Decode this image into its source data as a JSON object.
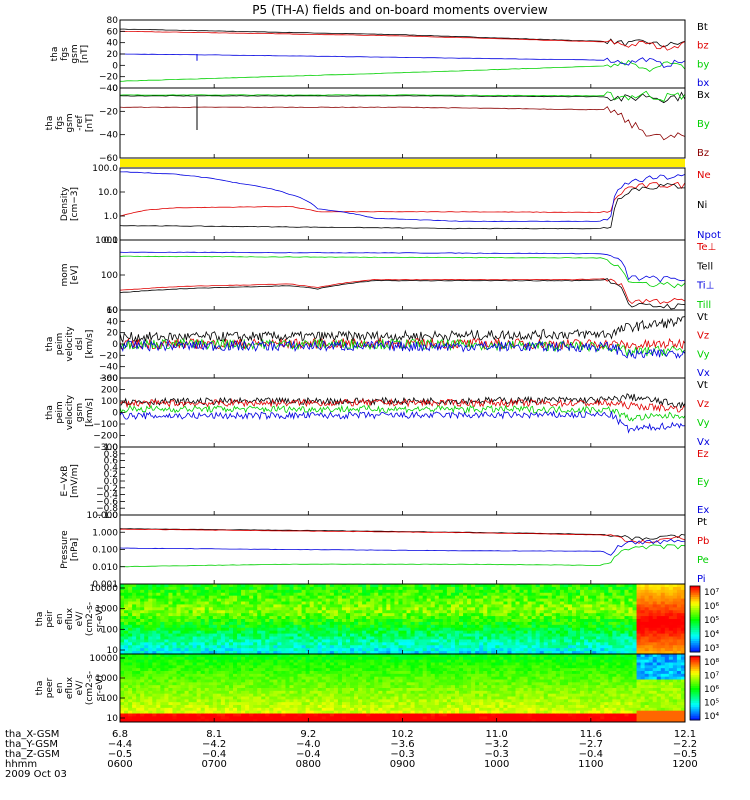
{
  "title": "P5 (TH-A) fields and on-board moments overview",
  "colors": {
    "black": "#000000",
    "red": "#e00000",
    "green": "#00d000",
    "blue": "#0000e0",
    "darkred": "#8b0000",
    "yellow": "#ffee00"
  },
  "chart_data": [
    {
      "type": "line",
      "id": "p1",
      "ylabel": [
        "tha",
        "fgs",
        "gsm",
        "[nT]"
      ],
      "ylim": [
        -40,
        80
      ],
      "yticks": [
        "80",
        "60",
        "40",
        "20",
        "0",
        "−20",
        "−40"
      ],
      "series": [
        {
          "name": "Bt",
          "color": "#000000",
          "x": [
            0,
            0.2,
            0.5,
            0.8,
            0.87,
            0.9,
            0.93,
            0.96,
            1
          ],
          "y": [
            64,
            60,
            54,
            44,
            42,
            38,
            42,
            35,
            40
          ]
        },
        {
          "name": "bz",
          "color": "#e00000",
          "x": [
            0,
            0.2,
            0.5,
            0.8,
            0.87,
            0.9,
            0.93,
            0.96,
            1
          ],
          "y": [
            60,
            57,
            52,
            43,
            41,
            35,
            40,
            30,
            38
          ]
        },
        {
          "name": "by",
          "color": "#00d000",
          "x": [
            0,
            0.2,
            0.5,
            0.8,
            0.87,
            0.9,
            0.93,
            0.96,
            1
          ],
          "y": [
            -28,
            -22,
            -13,
            -3,
            -1,
            5,
            -10,
            5,
            -4
          ]
        },
        {
          "name": "bx",
          "color": "#0000e0",
          "x": [
            0,
            0.2,
            0.5,
            0.8,
            0.87,
            0.9,
            0.93,
            0.96,
            1
          ],
          "y": [
            20,
            18,
            14,
            10,
            9,
            4,
            12,
            0,
            8
          ]
        }
      ]
    },
    {
      "type": "line",
      "id": "p2",
      "ylabel": [
        "tha",
        "fgs",
        "gsm",
        "-ref",
        "[nT]"
      ],
      "ylim": [
        -70,
        10
      ],
      "yticks": [
        "0",
        "−20",
        "−40",
        "−60"
      ],
      "series": [
        {
          "name": "Bx",
          "color": "#000000",
          "x": [
            0,
            0.5,
            0.87,
            0.9,
            0.93,
            0.96,
            1
          ],
          "y": [
            1,
            1,
            0,
            -3,
            2,
            -2,
            1
          ]
        },
        {
          "name": "By",
          "color": "#00d000",
          "x": [
            0,
            0.5,
            0.87,
            0.9,
            0.93,
            0.96,
            1
          ],
          "y": [
            2,
            2,
            1,
            0,
            3,
            -1,
            2
          ]
        },
        {
          "name": "Bz",
          "color": "#8b0000",
          "x": [
            0,
            0.5,
            0.87,
            0.9,
            0.93,
            0.96,
            1
          ],
          "y": [
            -12,
            -12,
            -15,
            -30,
            -40,
            -48,
            -45
          ]
        }
      ]
    },
    {
      "type": "line",
      "id": "p4",
      "log": true,
      "ylabel": [
        "Density",
        "[cm−3]"
      ],
      "ylim": [
        0.1,
        100
      ],
      "yticks": [
        "100.0",
        "10.0",
        "1.0",
        "0.1"
      ],
      "series": [
        {
          "name": "Ne",
          "color": "#e00000",
          "x": [
            0,
            0.05,
            0.1,
            0.3,
            0.35,
            0.45,
            0.6,
            0.85,
            0.87,
            0.9,
            0.95,
            1
          ],
          "y": [
            1,
            1.8,
            2.2,
            2.5,
            1.5,
            1.5,
            1.5,
            1.4,
            1.8,
            15,
            20,
            20
          ]
        },
        {
          "name": "Ni",
          "color": "#000000",
          "x": [
            0,
            0.3,
            0.6,
            0.85,
            0.87,
            0.9,
            0.95,
            1
          ],
          "y": [
            0.4,
            0.35,
            0.3,
            0.3,
            0.4,
            12,
            18,
            18
          ]
        },
        {
          "name": "Npot",
          "color": "#0000e0",
          "x": [
            0,
            0.1,
            0.2,
            0.3,
            0.35,
            0.45,
            0.6,
            0.85,
            0.87,
            0.9,
            0.95,
            1
          ],
          "y": [
            70,
            55,
            25,
            8,
            2,
            0.8,
            0.6,
            0.6,
            1,
            25,
            40,
            45
          ]
        }
      ]
    },
    {
      "type": "line",
      "id": "p5",
      "log": true,
      "ylabel": [
        "mom",
        "[eV]"
      ],
      "ylim": [
        10,
        10000
      ],
      "yticks": [
        "1000",
        "100",
        "10"
      ],
      "series": [
        {
          "name": "Te⊥",
          "color": "#e00000",
          "x": [
            0,
            0.1,
            0.3,
            0.35,
            0.45,
            0.8,
            0.87,
            0.9,
            1
          ],
          "y": [
            70,
            100,
            130,
            90,
            200,
            200,
            220,
            25,
            25
          ]
        },
        {
          "name": "Tell",
          "color": "#000000",
          "x": [
            0,
            0.1,
            0.3,
            0.35,
            0.45,
            0.8,
            0.87,
            0.9,
            1
          ],
          "y": [
            55,
            80,
            110,
            80,
            180,
            180,
            200,
            15,
            15
          ]
        },
        {
          "name": "Ti⊥",
          "color": "#0000e0",
          "x": [
            0,
            0.5,
            0.85,
            0.87,
            0.9,
            1
          ],
          "y": [
            3000,
            2800,
            2600,
            2000,
            250,
            200
          ]
        },
        {
          "name": "Till",
          "color": "#00d000",
          "x": [
            0,
            0.5,
            0.85,
            0.87,
            0.9,
            1
          ],
          "y": [
            2000,
            1800,
            1700,
            1300,
            150,
            120
          ]
        }
      ]
    },
    {
      "type": "line",
      "id": "p6",
      "noisy": true,
      "ylabel": [
        "tha",
        "peim",
        "velocity",
        "dsl",
        "[km/s]"
      ],
      "ylim": [
        -60,
        60
      ],
      "yticks": [
        "60",
        "40",
        "20",
        "0",
        "−20",
        "−40",
        "−60"
      ],
      "series": [
        {
          "name": "Vt",
          "color": "#000000",
          "x": [
            0,
            0.5,
            0.87,
            0.9,
            1
          ],
          "y": [
            12,
            14,
            18,
            30,
            40
          ]
        },
        {
          "name": "Vz",
          "color": "#e00000",
          "x": [
            0,
            0.5,
            0.87,
            0.9,
            1
          ],
          "y": [
            0,
            1,
            0,
            -3,
            1
          ]
        },
        {
          "name": "Vy",
          "color": "#00d000",
          "x": [
            0,
            0.5,
            0.87,
            0.9,
            1
          ],
          "y": [
            0,
            0,
            -5,
            -15,
            -10
          ]
        },
        {
          "name": "Vx",
          "color": "#0000e0",
          "x": [
            0,
            0.5,
            0.87,
            0.9,
            1
          ],
          "y": [
            -3,
            -4,
            -5,
            -20,
            -15
          ]
        }
      ]
    },
    {
      "type": "line",
      "id": "p7",
      "noisy": true,
      "ylabel": [
        "tha",
        "peim",
        "velocity",
        "gsm",
        "[km/s]"
      ],
      "ylim": [
        -300,
        300
      ],
      "yticks": [
        "300",
        "200",
        "100",
        "0",
        "−100",
        "−200",
        "−300"
      ],
      "series": [
        {
          "name": "Vt",
          "color": "#000000",
          "x": [
            0,
            0.5,
            0.87,
            0.9,
            1
          ],
          "y": [
            95,
            100,
            110,
            140,
            60
          ]
        },
        {
          "name": "Vz",
          "color": "#e00000",
          "x": [
            0,
            0.5,
            0.87,
            0.9,
            1
          ],
          "y": [
            80,
            85,
            80,
            60,
            30
          ]
        },
        {
          "name": "Vy",
          "color": "#00d000",
          "x": [
            0,
            0.5,
            0.87,
            0.9,
            1
          ],
          "y": [
            30,
            30,
            25,
            -50,
            -20
          ]
        },
        {
          "name": "Vx",
          "color": "#0000e0",
          "x": [
            0,
            0.5,
            0.87,
            0.9,
            1
          ],
          "y": [
            -30,
            -25,
            -20,
            -150,
            -100
          ]
        }
      ]
    },
    {
      "type": "line",
      "id": "p8",
      "ylabel": [
        "E−VxB",
        "[mV/m]"
      ],
      "ylim": [
        -1.0,
        1.0
      ],
      "yticks": [
        "1.0",
        "0.8",
        "0.6",
        "0.4",
        "0.2",
        "0.0",
        "−0.2",
        "−0.4",
        "−0.6",
        "−0.8",
        "−1.0"
      ],
      "series": [
        {
          "name": "Ez",
          "color": "#e00000",
          "x": [],
          "y": []
        },
        {
          "name": "Ey",
          "color": "#00d000",
          "x": [],
          "y": []
        },
        {
          "name": "Ex",
          "color": "#0000e0",
          "x": [],
          "y": []
        }
      ]
    },
    {
      "type": "line",
      "id": "p9",
      "log": true,
      "ylabel": [
        "Pressure",
        "[nPa]"
      ],
      "ylim": [
        0.001,
        10
      ],
      "yticks": [
        "10.000",
        "1.000",
        "0.100",
        "0.010",
        "0.001"
      ],
      "series": [
        {
          "name": "Pt",
          "color": "#000000",
          "x": [
            0,
            0.3,
            0.6,
            0.85,
            0.87,
            0.9,
            0.95,
            1
          ],
          "y": [
            1.6,
            1.3,
            1.0,
            0.75,
            0.7,
            0.5,
            0.5,
            0.6
          ]
        },
        {
          "name": "Pb",
          "color": "#e00000",
          "x": [
            0,
            0.3,
            0.6,
            0.85,
            0.87,
            0.9,
            0.95,
            1
          ],
          "y": [
            1.5,
            1.2,
            0.95,
            0.7,
            0.6,
            0.3,
            0.3,
            0.5
          ]
        },
        {
          "name": "Pe",
          "color": "#00d000",
          "x": [
            0,
            0.3,
            0.6,
            0.85,
            0.87,
            0.9,
            0.95,
            1
          ],
          "y": [
            0.01,
            0.014,
            0.014,
            0.012,
            0.02,
            0.12,
            0.15,
            0.15
          ]
        },
        {
          "name": "Pi",
          "color": "#0000e0",
          "x": [
            0,
            0.3,
            0.6,
            0.85,
            0.87,
            0.9,
            0.95,
            1
          ],
          "y": [
            0.12,
            0.1,
            0.085,
            0.08,
            0.06,
            0.25,
            0.3,
            0.3
          ]
        }
      ]
    },
    {
      "type": "heatmap",
      "id": "p10",
      "ylabel": [
        "tha",
        "peir",
        "en",
        "eflux",
        "eV/",
        "(cm2-s-",
        "sr-eV)"
      ],
      "ylim": [
        10,
        10000
      ],
      "yticks": [
        "10000",
        "1000",
        "100",
        "10"
      ],
      "colorbar_ticks": [
        "10⁷",
        "10⁶",
        "10⁵",
        "10⁴",
        "10³"
      ]
    },
    {
      "type": "heatmap",
      "id": "p11",
      "ylabel": [
        "tha",
        "peer",
        "en",
        "eflux",
        "eV/",
        "(cm2-s-",
        "sr-eV)"
      ],
      "ylim": [
        10,
        10000
      ],
      "yticks": [
        "10000",
        "1000",
        "100",
        "10"
      ],
      "colorbar_ticks": [
        "10⁸",
        "10⁷",
        "10⁶",
        "10⁵",
        "10⁴"
      ]
    }
  ],
  "bottom_axis": {
    "row_labels": [
      "tha_X-GSM",
      "tha_Y-GSM",
      "tha_Z-GSM",
      "hhmm"
    ],
    "date": "2009 Oct 03",
    "columns": [
      [
        "6.8",
        "−4.4",
        "−0.5",
        "0600"
      ],
      [
        "8.1",
        "−4.2",
        "−0.4",
        "0700"
      ],
      [
        "9.2",
        "−4.0",
        "−0.4",
        "0800"
      ],
      [
        "10.2",
        "−3.6",
        "−0.3",
        "0900"
      ],
      [
        "11.0",
        "−3.2",
        "−0.3",
        "1000"
      ],
      [
        "11.6",
        "−2.7",
        "−0.4",
        "1100"
      ],
      [
        "12.1",
        "−2.2",
        "−0.5",
        "1200"
      ]
    ]
  }
}
